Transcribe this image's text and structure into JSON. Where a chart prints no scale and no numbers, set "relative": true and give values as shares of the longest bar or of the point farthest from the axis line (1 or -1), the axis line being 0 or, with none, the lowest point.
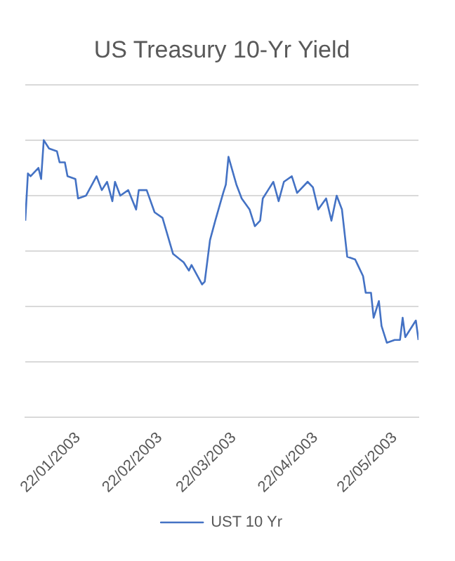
{
  "chart_data": {
    "type": "line",
    "title": "US Treasury 10-Yr Yield",
    "relative": true,
    "grid": "y",
    "legend": "bottom",
    "marker": "none",
    "line_style": "solid",
    "x": [
      "2003-01-02",
      "2003-01-03",
      "2003-01-04",
      "2003-01-07",
      "2003-01-08",
      "2003-01-09",
      "2003-01-11",
      "2003-01-14",
      "2003-01-15",
      "2003-01-17",
      "2003-01-18",
      "2003-01-21",
      "2003-01-22",
      "2003-01-25",
      "2003-01-29",
      "2003-01-31",
      "2003-02-02",
      "2003-02-04",
      "2003-02-05",
      "2003-02-07",
      "2003-02-10",
      "2003-02-13",
      "2003-02-14",
      "2003-02-17",
      "2003-02-20",
      "2003-02-23",
      "2003-02-27",
      "2003-03-03",
      "2003-03-05",
      "2003-03-06",
      "2003-03-10",
      "2003-03-11",
      "2003-03-13",
      "2003-03-15",
      "2003-03-18",
      "2003-03-19",
      "2003-03-20",
      "2003-03-23",
      "2003-03-25",
      "2003-03-28",
      "2003-03-30",
      "2003-04-01",
      "2003-04-02",
      "2003-04-04",
      "2003-04-06",
      "2003-04-08",
      "2003-04-10",
      "2003-04-13",
      "2003-04-15",
      "2003-04-19",
      "2003-04-21",
      "2003-04-23",
      "2003-04-26",
      "2003-04-28",
      "2003-04-30",
      "2003-05-02",
      "2003-05-04",
      "2003-05-07",
      "2003-05-10",
      "2003-05-11",
      "2003-05-13",
      "2003-05-14",
      "2003-05-16",
      "2003-05-17",
      "2003-05-19",
      "2003-05-22",
      "2003-05-24",
      "2003-05-25",
      "2003-05-26",
      "2003-05-30",
      "2003-05-31"
    ],
    "xlim": [
      "2003-01-02",
      "2003-05-31"
    ],
    "xticks": [
      {
        "value": "2003-01-22",
        "label": "22/01/2003"
      },
      {
        "value": "2003-02-22",
        "label": "22/02/2003"
      },
      {
        "value": "2003-03-22",
        "label": "22/03/2003"
      },
      {
        "value": "2003-04-22",
        "label": "22/04/2003"
      },
      {
        "value": "2003-05-22",
        "label": "22/05/2003"
      }
    ],
    "series": [
      {
        "name": "UST 10 Yr",
        "color": "#4472c4",
        "values": [
          0.71,
          0.88,
          0.87,
          0.9,
          0.86,
          1.0,
          0.97,
          0.96,
          0.92,
          0.92,
          0.87,
          0.86,
          0.79,
          0.8,
          0.87,
          0.82,
          0.85,
          0.78,
          0.85,
          0.8,
          0.82,
          0.75,
          0.82,
          0.82,
          0.74,
          0.72,
          0.59,
          0.56,
          0.53,
          0.55,
          0.48,
          0.49,
          0.64,
          0.71,
          0.81,
          0.84,
          0.94,
          0.84,
          0.79,
          0.75,
          0.69,
          0.71,
          0.79,
          0.82,
          0.85,
          0.78,
          0.85,
          0.87,
          0.81,
          0.85,
          0.83,
          0.75,
          0.79,
          0.71,
          0.8,
          0.75,
          0.58,
          0.57,
          0.51,
          0.45,
          0.45,
          0.36,
          0.42,
          0.33,
          0.27,
          0.28,
          0.28,
          0.36,
          0.29,
          0.35,
          0.28
        ]
      }
    ]
  }
}
